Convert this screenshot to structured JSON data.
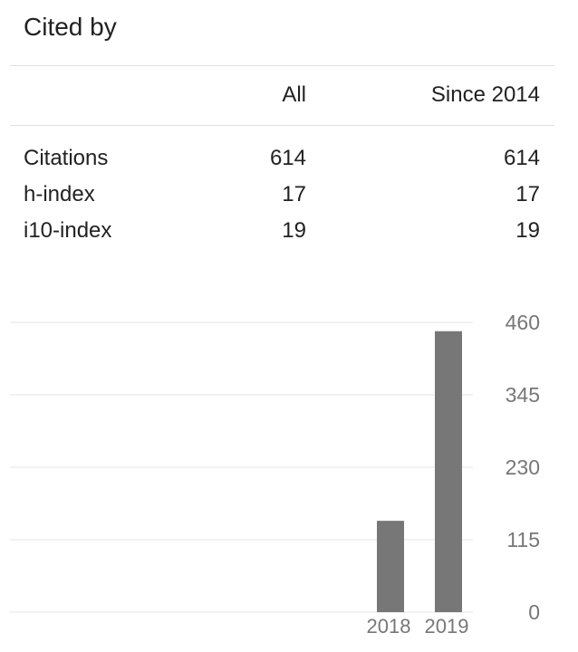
{
  "panel": {
    "title": "Cited by"
  },
  "table": {
    "columns": [
      "",
      "All",
      "Since 2014"
    ],
    "rows": [
      {
        "label": "Citations",
        "all": "614",
        "since": "614"
      },
      {
        "label": "h-index",
        "all": "17",
        "since": "17"
      },
      {
        "label": "i10-index",
        "all": "19",
        "since": "19"
      }
    ]
  },
  "chart_data": {
    "type": "bar",
    "categories": [
      "2018",
      "2019"
    ],
    "values": [
      145,
      446
    ],
    "title": "",
    "xlabel": "",
    "ylabel": "",
    "ylim": [
      0,
      460
    ],
    "yticks": [
      "460",
      "345",
      "230",
      "115",
      "0"
    ],
    "grid": true,
    "y_axis_position": "right",
    "bar_color": "#777777"
  }
}
